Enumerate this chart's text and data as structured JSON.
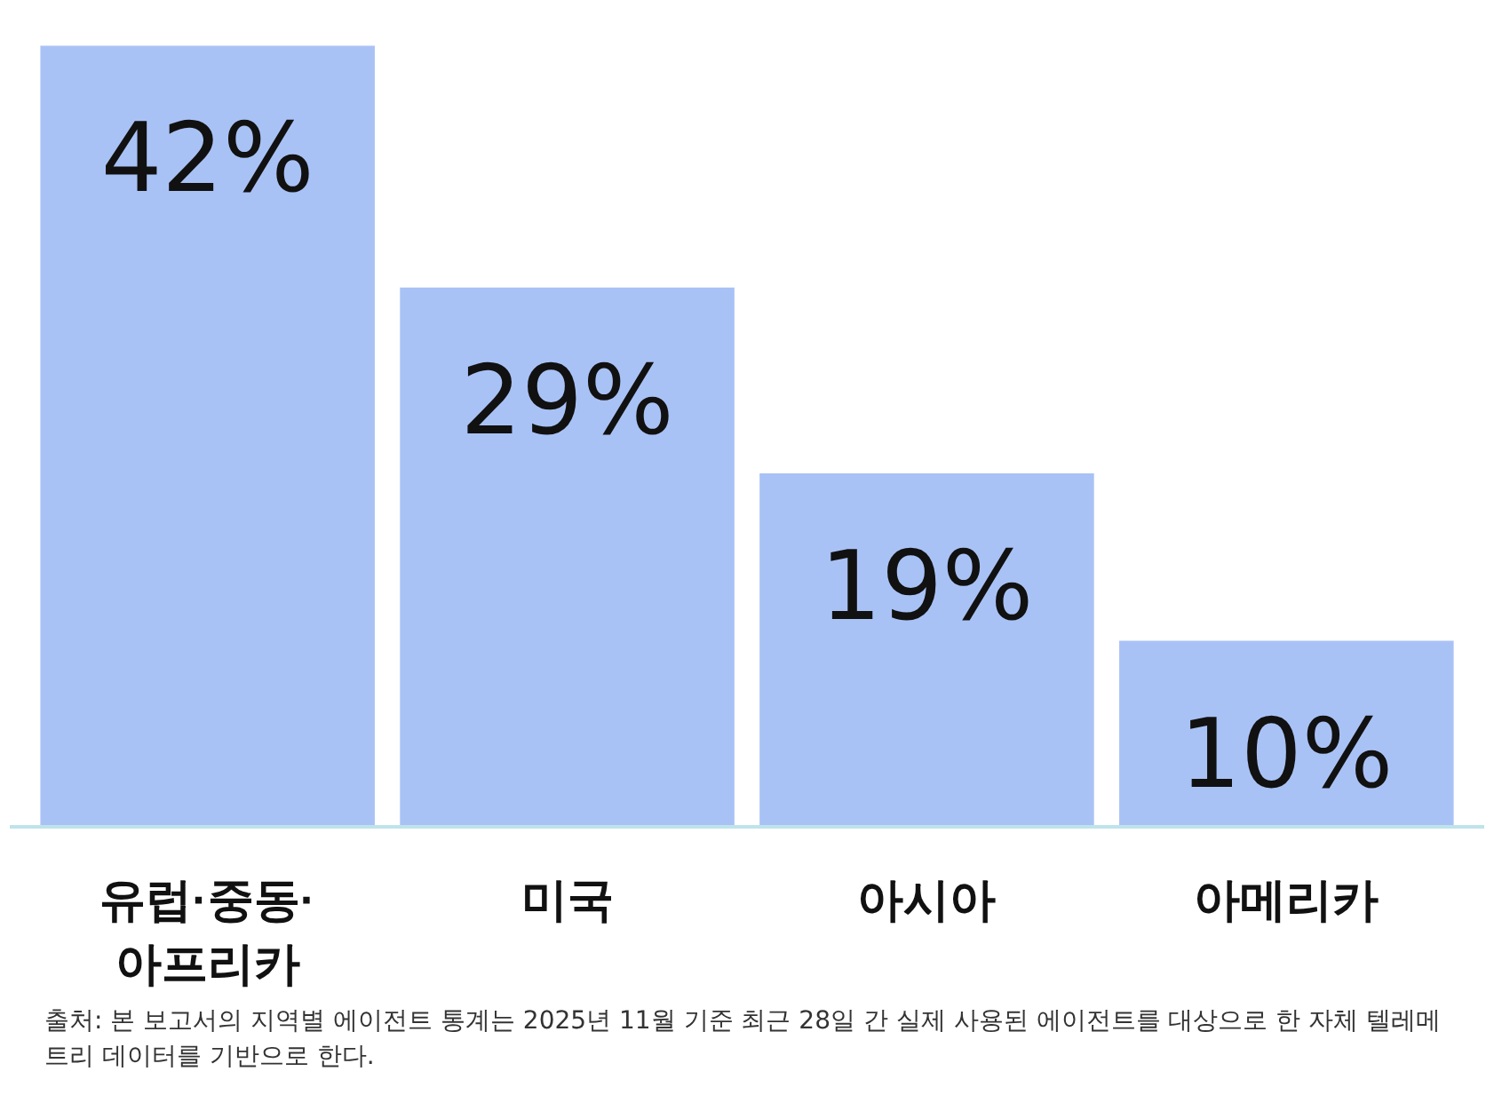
{
  "chart_data": {
    "type": "bar",
    "categories": [
      "유럽·중동·아프리카",
      "미국",
      "아시아",
      "아메리카"
    ],
    "values": [
      42,
      29,
      19,
      10
    ],
    "color": "#a9c2f6",
    "value_labels": [
      "42%",
      "29%",
      "19%",
      "10%"
    ],
    "annotations": [
      "출처: 본 보고서의 지역별 에이전트 통계는 2025년 11월 기준 최근 28일 간 실제 사용된 에이전트를 대상으로 한 자체 텔레메트리 데이터를 기반으로 한다."
    ]
  }
}
